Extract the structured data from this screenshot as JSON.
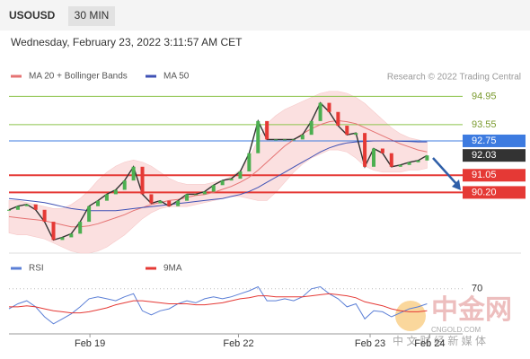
{
  "header": {
    "symbol": "USOUSD",
    "interval": "30 MIN",
    "datetime": "Wednesday, February 23, 2022 3:11:57 AM CET"
  },
  "watermark": {
    "name": "中金网",
    "site": "CNGOLD.COM",
    "slogan": "中 文 财 经 新 媒 体"
  },
  "chart_data": [
    {
      "type": "line",
      "source": "Research © 2022 Trading Central",
      "x": [
        0,
        1,
        2,
        3,
        4,
        5,
        6,
        7,
        8,
        9,
        10,
        11,
        12,
        13,
        14,
        15,
        16,
        17,
        18,
        19,
        20,
        21,
        22,
        23,
        24,
        25,
        26,
        27,
        28,
        29,
        30,
        31,
        32,
        33,
        34,
        35,
        36,
        37,
        38,
        39,
        40,
        41,
        42,
        43,
        44,
        45,
        46,
        47
      ],
      "xlim": [
        0,
        51
      ],
      "ylim": [
        87.2,
        95.5
      ],
      "price": {
        "color": "#333333",
        "values": [
          89.34,
          89.52,
          89.61,
          89.34,
          88.75,
          87.85,
          87.98,
          88.16,
          88.75,
          89.52,
          89.79,
          90.11,
          90.33,
          90.79,
          91.47,
          90.11,
          89.66,
          89.79,
          89.52,
          89.79,
          90.11,
          90.11,
          90.24,
          90.56,
          90.79,
          90.88,
          91.24,
          92.14,
          93.73,
          92.82,
          92.82,
          92.82,
          92.82,
          93.05,
          93.73,
          94.63,
          94.18,
          93.5,
          93.05,
          93.14,
          91.47,
          92.37,
          92.14,
          91.47,
          91.56,
          91.69,
          91.78,
          92.03
        ]
      },
      "bands": {
        "color": "#fbe0e0",
        "upper": [
          89.8,
          89.8,
          89.7,
          89.6,
          89.5,
          89.4,
          89.4,
          89.6,
          89.9,
          90.3,
          90.8,
          91.2,
          91.5,
          91.7,
          91.8,
          91.7,
          91.5,
          91.2,
          90.9,
          90.7,
          90.6,
          90.6,
          90.6,
          90.7,
          90.8,
          91.0,
          91.3,
          91.9,
          92.8,
          93.6,
          94.0,
          94.3,
          94.5,
          94.7,
          94.9,
          95.1,
          95.2,
          95.2,
          95.1,
          94.9,
          94.6,
          94.2,
          93.8,
          93.4,
          93.1,
          92.9,
          92.8,
          92.7
        ],
        "lower": [
          88.2,
          88.1,
          88.1,
          88.0,
          87.9,
          87.7,
          87.5,
          87.3,
          87.2,
          87.2,
          87.3,
          87.5,
          87.8,
          88.1,
          88.5,
          88.9,
          89.2,
          89.4,
          89.5,
          89.5,
          89.5,
          89.6,
          89.7,
          89.8,
          89.9,
          90.0,
          90.0,
          89.9,
          89.8,
          89.8,
          90.2,
          90.7,
          91.2,
          91.6,
          91.9,
          92.1,
          92.3,
          92.3,
          92.2,
          91.9,
          91.5,
          91.3,
          91.2,
          91.2,
          91.2,
          91.3,
          91.3,
          91.4
        ]
      },
      "series": [
        {
          "name": "MA 20 + Bollinger Bands",
          "color": "#e57373",
          "values": [
            89.0,
            88.95,
            88.9,
            88.85,
            88.8,
            88.7,
            88.6,
            88.5,
            88.5,
            88.55,
            88.65,
            88.8,
            88.95,
            89.1,
            89.3,
            89.45,
            89.6,
            89.7,
            89.8,
            89.85,
            89.95,
            90.05,
            90.1,
            90.2,
            90.35,
            90.5,
            90.7,
            90.95,
            91.3,
            91.7,
            92.1,
            92.5,
            92.8,
            93.1,
            93.35,
            93.55,
            93.7,
            93.75,
            93.7,
            93.6,
            93.4,
            93.2,
            93.0,
            92.8,
            92.6,
            92.45,
            92.3,
            92.2
          ]
        },
        {
          "name": "MA 50",
          "color": "#3f51b5",
          "values": [
            89.9,
            89.85,
            89.8,
            89.75,
            89.7,
            89.6,
            89.5,
            89.4,
            89.35,
            89.3,
            89.3,
            89.3,
            89.3,
            89.35,
            89.4,
            89.45,
            89.5,
            89.55,
            89.6,
            89.65,
            89.7,
            89.75,
            89.8,
            89.85,
            89.9,
            90.0,
            90.1,
            90.25,
            90.45,
            90.7,
            90.95,
            91.2,
            91.45,
            91.7,
            91.95,
            92.2,
            92.4,
            92.55,
            92.65,
            92.7,
            92.72,
            92.75,
            92.75,
            92.75,
            92.73,
            92.72,
            92.7,
            92.7
          ]
        }
      ],
      "levels": [
        {
          "value": 94.95,
          "color": "#8bc34a",
          "line": true,
          "box": false,
          "emphasis": false
        },
        {
          "value": 93.55,
          "color": "#8bc34a",
          "line": true,
          "box": false,
          "emphasis": false
        },
        {
          "value": 92.75,
          "color": "#3d7be0",
          "line": true,
          "box": true,
          "emphasis": false
        },
        {
          "value": 92.03,
          "color": "#333333",
          "line": false,
          "box": true,
          "emphasis": false
        },
        {
          "value": 91.05,
          "color": "#e53935",
          "line": true,
          "box": true,
          "emphasis": true
        },
        {
          "value": 90.2,
          "label": "90.20",
          "color": "#e53935",
          "line": true,
          "box": true,
          "emphasis": true
        }
      ]
    },
    {
      "type": "line",
      "x": [
        0,
        1,
        2,
        3,
        4,
        5,
        6,
        7,
        8,
        9,
        10,
        11,
        12,
        13,
        14,
        15,
        16,
        17,
        18,
        19,
        20,
        21,
        22,
        23,
        24,
        25,
        26,
        27,
        28,
        29,
        30,
        31,
        32,
        33,
        34,
        35,
        36,
        37,
        38,
        39,
        40,
        41,
        42,
        43,
        44,
        45,
        46,
        47
      ],
      "xlim": [
        0,
        51
      ],
      "ylim": [
        25,
        85
      ],
      "yticks": [
        70
      ],
      "xticks": [
        {
          "value": 9.1,
          "label": "Feb 19"
        },
        {
          "value": 25.8,
          "label": "Feb 22"
        },
        {
          "value": 40.6,
          "label": "Feb 23"
        },
        {
          "value": 47.3,
          "label": "Feb 24"
        }
      ],
      "series": [
        {
          "name": "RSI",
          "color": "#5b7fd6",
          "values": [
            50,
            55,
            58,
            52,
            42,
            35,
            40,
            45,
            52,
            60,
            62,
            60,
            58,
            62,
            65,
            48,
            44,
            48,
            50,
            55,
            58,
            56,
            60,
            62,
            60,
            62,
            65,
            68,
            72,
            58,
            58,
            60,
            58,
            62,
            70,
            72,
            65,
            60,
            52,
            55,
            40,
            48,
            47,
            42,
            46,
            50,
            52,
            55
          ]
        },
        {
          "name": "9MA",
          "color": "#e53935",
          "values": [
            52,
            52,
            53,
            52,
            50,
            48,
            47,
            46,
            46,
            47,
            49,
            51,
            54,
            56,
            58,
            58,
            57,
            56,
            55,
            55,
            55,
            54,
            54,
            55,
            56,
            58,
            60,
            61,
            63,
            63,
            62,
            62,
            62,
            62,
            63,
            64,
            65,
            64,
            63,
            61,
            57,
            55,
            53,
            50,
            48,
            47,
            47,
            48
          ]
        }
      ]
    }
  ]
}
